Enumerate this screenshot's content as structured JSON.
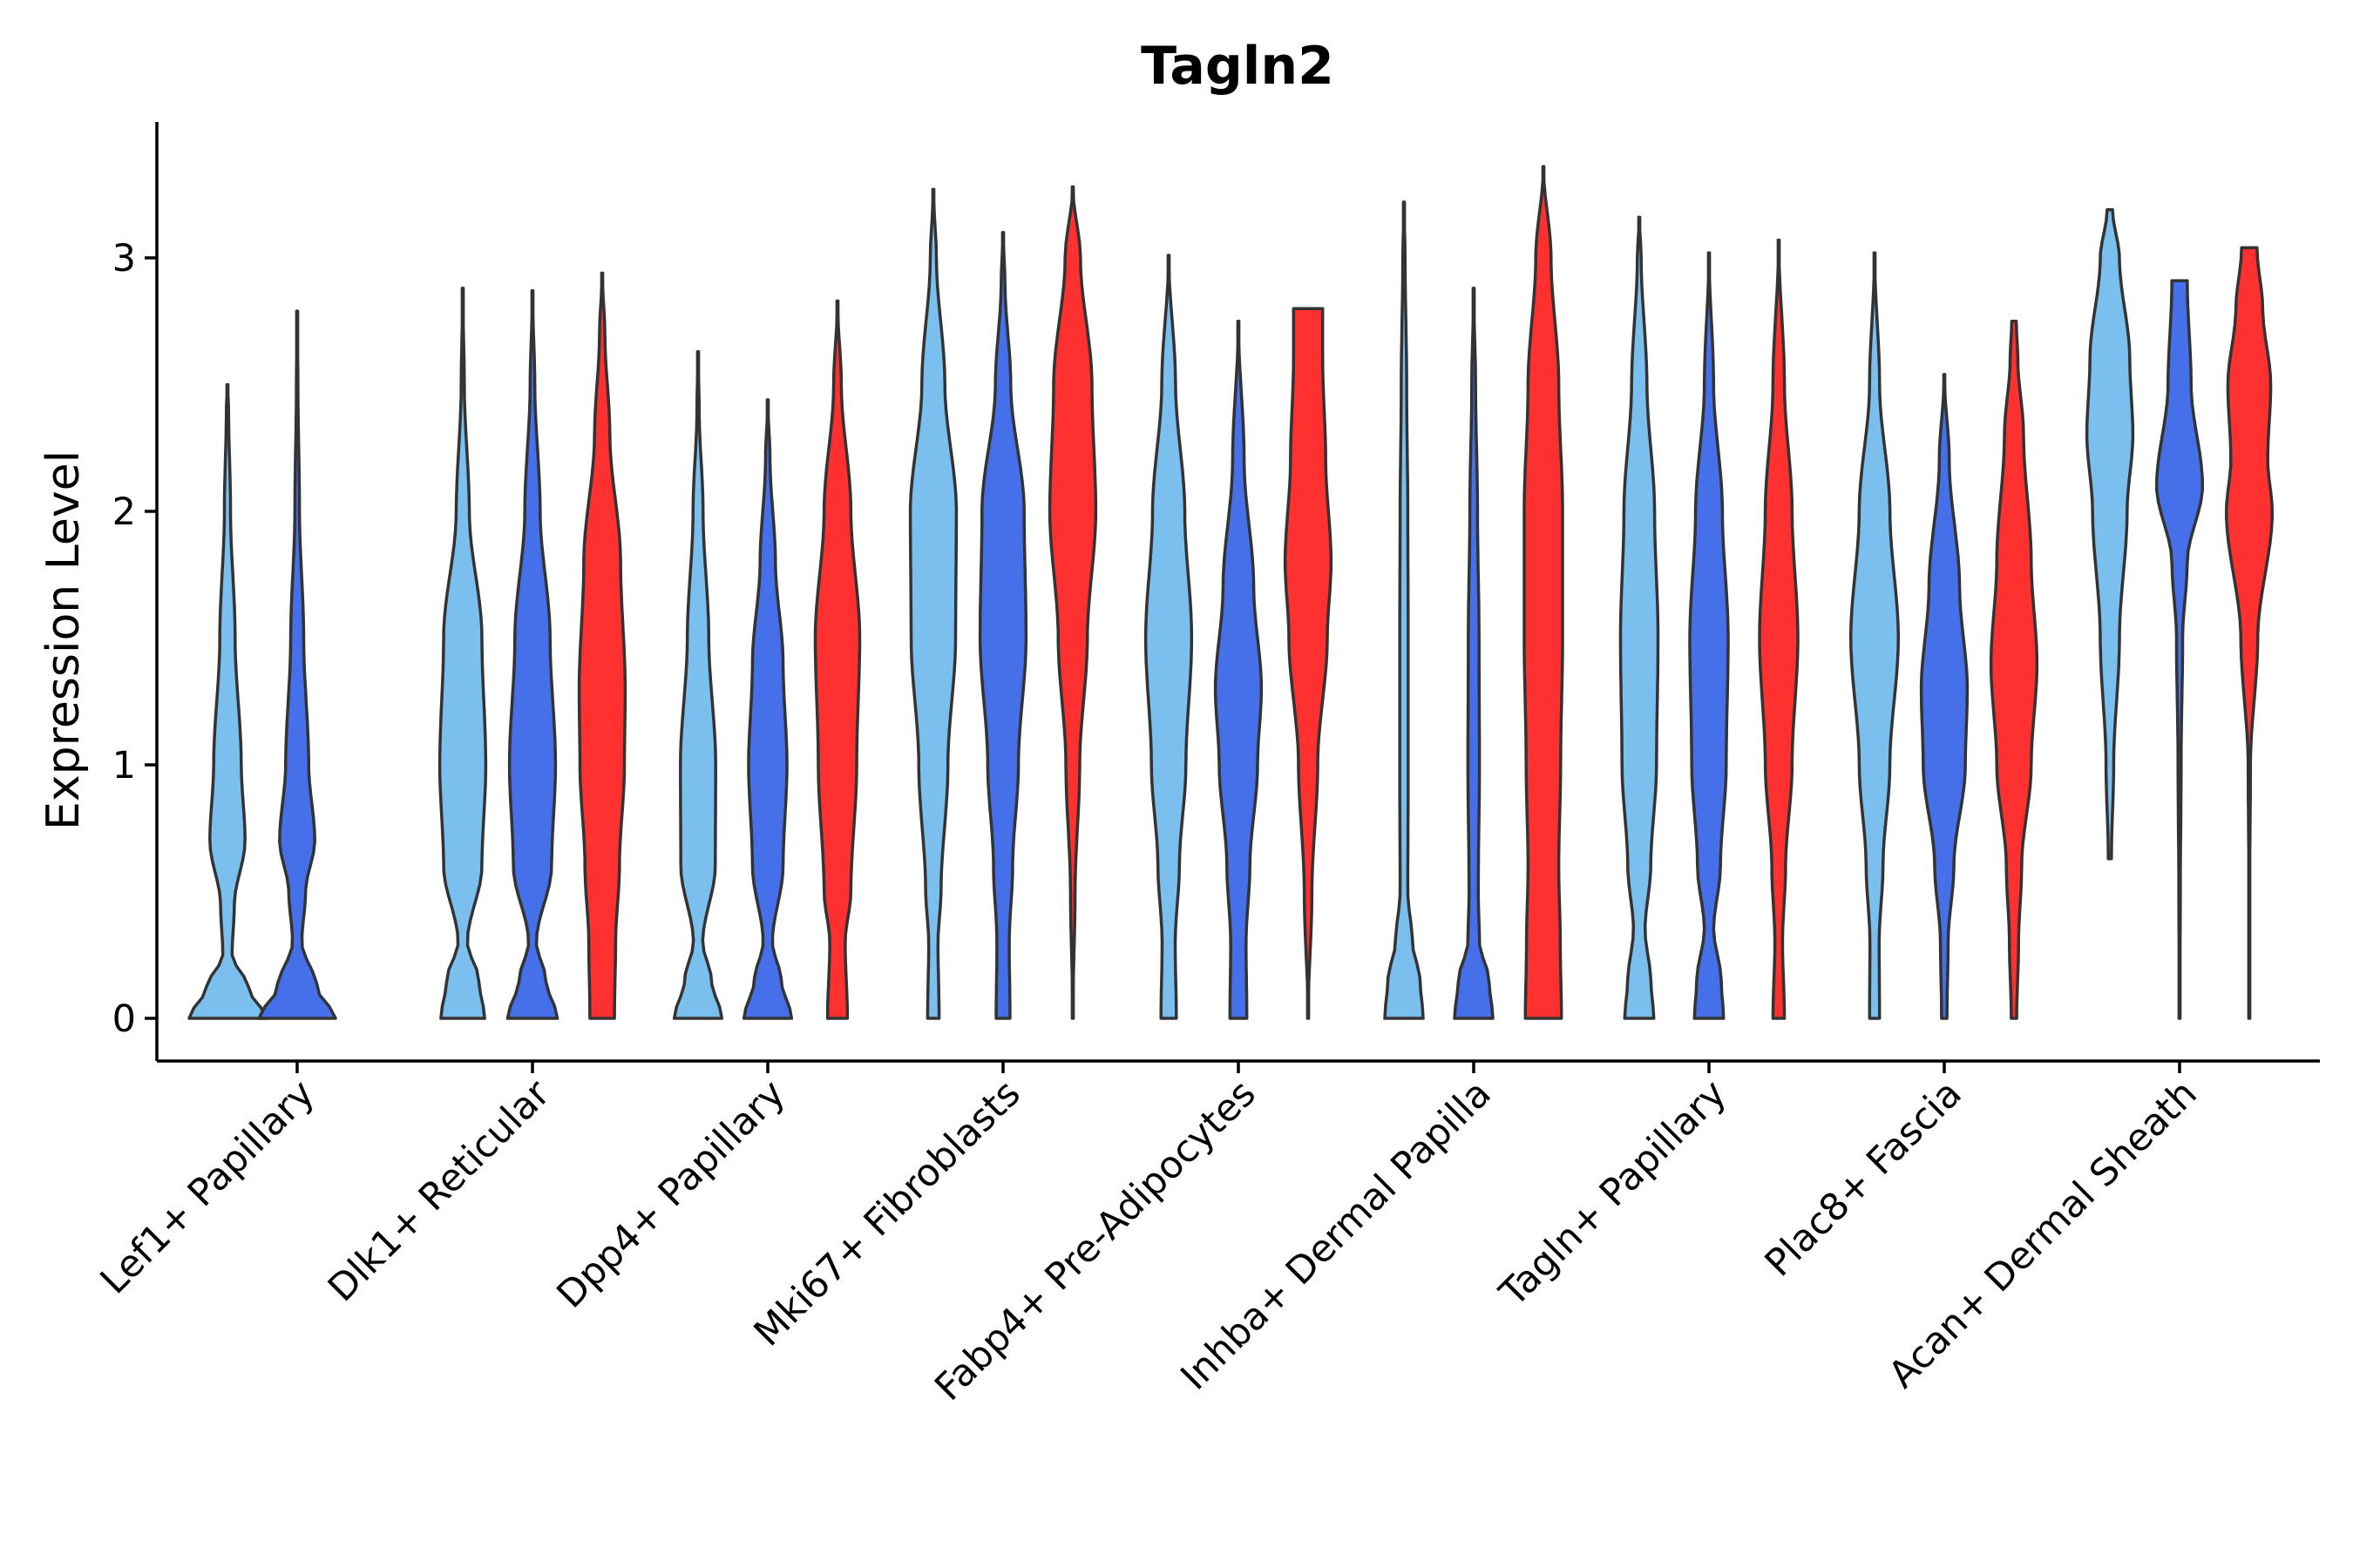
{
  "chart_data": {
    "type": "violin",
    "title": "Tagln2",
    "xlabel": "",
    "ylabel": "Expression Level",
    "ylim": [
      -0.17,
      3.55
    ],
    "yticks": [
      0,
      1,
      2,
      3
    ],
    "categories": [
      "Lef1+ Papillary",
      "Dlk1+ Reticular",
      "Dpp4+ Papillary",
      "Mki67+ Fibroblasts",
      "Fabp4+ Pre-Adipocytes",
      "Inhba+ Dermal Papilla",
      "Tagln+ Papillary",
      "Plac8+ Fascia",
      "Acan+ Dermal Sheath"
    ],
    "groups": [
      {
        "name": "group-1",
        "color": "#7bbfef"
      },
      {
        "name": "group-2",
        "color": "#4570ea"
      },
      {
        "name": "group-3",
        "color": "#ff3030"
      }
    ],
    "violins": [
      {
        "category": 0,
        "group": 0,
        "ymin": 0,
        "ymax": 2.5,
        "profile": [
          [
            0,
            1.0
          ],
          [
            0.12,
            0.55
          ],
          [
            0.25,
            0.12
          ],
          [
            0.45,
            0.18
          ],
          [
            0.7,
            0.46
          ],
          [
            1.0,
            0.36
          ],
          [
            1.5,
            0.2
          ],
          [
            2.0,
            0.08
          ],
          [
            2.4,
            0.03
          ],
          [
            2.5,
            0.0
          ]
        ]
      },
      {
        "category": 0,
        "group": 1,
        "ymin": 0,
        "ymax": 2.79,
        "profile": [
          [
            0,
            1.0
          ],
          [
            0.12,
            0.52
          ],
          [
            0.3,
            0.12
          ],
          [
            0.5,
            0.22
          ],
          [
            0.7,
            0.46
          ],
          [
            1.0,
            0.3
          ],
          [
            1.5,
            0.17
          ],
          [
            2.0,
            0.06
          ],
          [
            2.5,
            0.02
          ],
          [
            2.79,
            0.0
          ]
        ]
      },
      {
        "category": 1,
        "group": 0,
        "ymin": 0,
        "ymax": 2.88,
        "profile": [
          [
            0,
            0.57
          ],
          [
            0.15,
            0.42
          ],
          [
            0.3,
            0.12
          ],
          [
            0.6,
            0.5
          ],
          [
            1.0,
            0.6
          ],
          [
            1.5,
            0.5
          ],
          [
            2.0,
            0.17
          ],
          [
            2.5,
            0.04
          ],
          [
            2.88,
            0.0
          ]
        ]
      },
      {
        "category": 1,
        "group": 1,
        "ymin": 0,
        "ymax": 2.87,
        "profile": [
          [
            0,
            0.65
          ],
          [
            0.15,
            0.35
          ],
          [
            0.3,
            0.1
          ],
          [
            0.6,
            0.5
          ],
          [
            1.0,
            0.6
          ],
          [
            1.5,
            0.46
          ],
          [
            2.0,
            0.2
          ],
          [
            2.5,
            0.06
          ],
          [
            2.87,
            0.0
          ]
        ]
      },
      {
        "category": 1,
        "group": 2,
        "ymin": 0,
        "ymax": 2.94,
        "profile": [
          [
            0,
            0.32
          ],
          [
            0.3,
            0.35
          ],
          [
            0.6,
            0.45
          ],
          [
            1.0,
            0.58
          ],
          [
            1.3,
            0.6
          ],
          [
            1.8,
            0.48
          ],
          [
            2.3,
            0.2
          ],
          [
            2.7,
            0.07
          ],
          [
            2.94,
            0.0
          ]
        ]
      },
      {
        "category": 2,
        "group": 0,
        "ymin": 0,
        "ymax": 2.63,
        "profile": [
          [
            0,
            0.62
          ],
          [
            0.15,
            0.35
          ],
          [
            0.3,
            0.12
          ],
          [
            0.6,
            0.45
          ],
          [
            1.0,
            0.46
          ],
          [
            1.5,
            0.28
          ],
          [
            2.0,
            0.13
          ],
          [
            2.4,
            0.03
          ],
          [
            2.63,
            0.0
          ]
        ]
      },
      {
        "category": 2,
        "group": 1,
        "ymin": 0,
        "ymax": 2.44,
        "profile": [
          [
            0,
            0.62
          ],
          [
            0.15,
            0.35
          ],
          [
            0.3,
            0.12
          ],
          [
            0.6,
            0.4
          ],
          [
            1.0,
            0.5
          ],
          [
            1.4,
            0.4
          ],
          [
            1.8,
            0.2
          ],
          [
            2.2,
            0.06
          ],
          [
            2.44,
            0.0
          ]
        ]
      },
      {
        "category": 2,
        "group": 2,
        "ymin": 0,
        "ymax": 2.83,
        "profile": [
          [
            0,
            0.26
          ],
          [
            0.3,
            0.2
          ],
          [
            0.5,
            0.35
          ],
          [
            1.0,
            0.5
          ],
          [
            1.5,
            0.58
          ],
          [
            2.0,
            0.35
          ],
          [
            2.5,
            0.1
          ],
          [
            2.83,
            0.0
          ]
        ]
      },
      {
        "category": 3,
        "group": 0,
        "ymin": 0,
        "ymax": 3.27,
        "profile": [
          [
            0,
            0.15
          ],
          [
            0.3,
            0.12
          ],
          [
            0.5,
            0.2
          ],
          [
            1.0,
            0.38
          ],
          [
            1.5,
            0.58
          ],
          [
            2.0,
            0.6
          ],
          [
            2.5,
            0.3
          ],
          [
            3.0,
            0.08
          ],
          [
            3.27,
            0.0
          ]
        ]
      },
      {
        "category": 3,
        "group": 1,
        "ymin": 0,
        "ymax": 3.1,
        "profile": [
          [
            0,
            0.18
          ],
          [
            0.3,
            0.16
          ],
          [
            0.6,
            0.25
          ],
          [
            1.0,
            0.4
          ],
          [
            1.5,
            0.6
          ],
          [
            2.0,
            0.55
          ],
          [
            2.5,
            0.2
          ],
          [
            2.9,
            0.05
          ],
          [
            3.1,
            0.0
          ]
        ]
      },
      {
        "category": 3,
        "group": 2,
        "ymin": 0,
        "ymax": 3.28,
        "profile": [
          [
            0,
            0.0
          ],
          [
            0.5,
            0.06
          ],
          [
            1.0,
            0.18
          ],
          [
            1.5,
            0.38
          ],
          [
            2.0,
            0.6
          ],
          [
            2.5,
            0.5
          ],
          [
            3.0,
            0.2
          ],
          [
            3.28,
            0.0
          ]
        ]
      },
      {
        "category": 4,
        "group": 0,
        "ymin": 0,
        "ymax": 3.01,
        "profile": [
          [
            0,
            0.2
          ],
          [
            0.3,
            0.17
          ],
          [
            0.6,
            0.28
          ],
          [
            1.0,
            0.45
          ],
          [
            1.5,
            0.6
          ],
          [
            2.0,
            0.42
          ],
          [
            2.5,
            0.18
          ],
          [
            3.01,
            0.0
          ]
        ]
      },
      {
        "category": 4,
        "group": 1,
        "ymin": 0,
        "ymax": 2.75,
        "profile": [
          [
            0,
            0.22
          ],
          [
            0.3,
            0.2
          ],
          [
            0.6,
            0.3
          ],
          [
            1.0,
            0.5
          ],
          [
            1.3,
            0.6
          ],
          [
            1.7,
            0.4
          ],
          [
            2.2,
            0.15
          ],
          [
            2.75,
            0.0
          ]
        ]
      },
      {
        "category": 4,
        "group": 2,
        "ymin": 0,
        "ymax": 2.8,
        "profile": [
          [
            0,
            0.0
          ],
          [
            0.5,
            0.1
          ],
          [
            1.0,
            0.25
          ],
          [
            1.5,
            0.5
          ],
          [
            1.8,
            0.6
          ],
          [
            2.2,
            0.46
          ],
          [
            2.6,
            0.38
          ],
          [
            2.8,
            0.38
          ]
        ]
      },
      {
        "category": 5,
        "group": 0,
        "ymin": 0,
        "ymax": 3.22,
        "profile": [
          [
            0,
            0.5
          ],
          [
            0.15,
            0.42
          ],
          [
            0.3,
            0.22
          ],
          [
            0.5,
            0.1
          ],
          [
            1.0,
            0.11
          ],
          [
            1.5,
            0.11
          ],
          [
            2.0,
            0.1
          ],
          [
            2.5,
            0.07
          ],
          [
            3.0,
            0.03
          ],
          [
            3.22,
            0.0
          ]
        ]
      },
      {
        "category": 5,
        "group": 1,
        "ymin": 0,
        "ymax": 2.88,
        "profile": [
          [
            0,
            0.5
          ],
          [
            0.15,
            0.4
          ],
          [
            0.3,
            0.15
          ],
          [
            0.5,
            0.12
          ],
          [
            1.0,
            0.15
          ],
          [
            1.5,
            0.14
          ],
          [
            2.0,
            0.1
          ],
          [
            2.5,
            0.05
          ],
          [
            2.88,
            0.0
          ]
        ]
      },
      {
        "category": 5,
        "group": 2,
        "ymin": 0,
        "ymax": 3.36,
        "profile": [
          [
            0,
            0.47
          ],
          [
            0.3,
            0.44
          ],
          [
            0.6,
            0.4
          ],
          [
            1.0,
            0.45
          ],
          [
            1.5,
            0.5
          ],
          [
            2.0,
            0.5
          ],
          [
            2.5,
            0.4
          ],
          [
            3.0,
            0.2
          ],
          [
            3.36,
            0.0
          ]
        ]
      },
      {
        "category": 6,
        "group": 0,
        "ymin": 0,
        "ymax": 3.16,
        "profile": [
          [
            0,
            0.38
          ],
          [
            0.15,
            0.3
          ],
          [
            0.35,
            0.15
          ],
          [
            0.6,
            0.3
          ],
          [
            1.0,
            0.45
          ],
          [
            1.5,
            0.49
          ],
          [
            2.0,
            0.4
          ],
          [
            2.5,
            0.2
          ],
          [
            3.0,
            0.05
          ],
          [
            3.16,
            0.0
          ]
        ]
      },
      {
        "category": 6,
        "group": 1,
        "ymin": 0,
        "ymax": 3.02,
        "profile": [
          [
            0,
            0.38
          ],
          [
            0.15,
            0.32
          ],
          [
            0.35,
            0.12
          ],
          [
            0.6,
            0.3
          ],
          [
            1.0,
            0.45
          ],
          [
            1.5,
            0.5
          ],
          [
            2.0,
            0.35
          ],
          [
            2.5,
            0.12
          ],
          [
            3.02,
            0.0
          ]
        ]
      },
      {
        "category": 6,
        "group": 2,
        "ymin": 0,
        "ymax": 3.07,
        "profile": [
          [
            0,
            0.15
          ],
          [
            0.3,
            0.1
          ],
          [
            0.6,
            0.18
          ],
          [
            1.0,
            0.35
          ],
          [
            1.5,
            0.5
          ],
          [
            2.0,
            0.35
          ],
          [
            2.5,
            0.15
          ],
          [
            3.07,
            0.0
          ]
        ]
      },
      {
        "category": 7,
        "group": 0,
        "ymin": 0,
        "ymax": 3.02,
        "profile": [
          [
            0,
            0.13
          ],
          [
            0.3,
            0.12
          ],
          [
            0.6,
            0.22
          ],
          [
            1.0,
            0.4
          ],
          [
            1.5,
            0.62
          ],
          [
            2.0,
            0.4
          ],
          [
            2.5,
            0.13
          ],
          [
            3.02,
            0.0
          ]
        ]
      },
      {
        "category": 7,
        "group": 1,
        "ymin": 0,
        "ymax": 2.54,
        "profile": [
          [
            0,
            0.07
          ],
          [
            0.3,
            0.1
          ],
          [
            0.6,
            0.25
          ],
          [
            1.0,
            0.55
          ],
          [
            1.3,
            0.6
          ],
          [
            1.7,
            0.4
          ],
          [
            2.2,
            0.13
          ],
          [
            2.54,
            0.0
          ]
        ]
      },
      {
        "category": 7,
        "group": 2,
        "ymin": 0,
        "ymax": 2.75,
        "profile": [
          [
            0,
            0.07
          ],
          [
            0.3,
            0.12
          ],
          [
            0.6,
            0.2
          ],
          [
            1.0,
            0.45
          ],
          [
            1.4,
            0.6
          ],
          [
            1.8,
            0.45
          ],
          [
            2.3,
            0.25
          ],
          [
            2.6,
            0.1
          ],
          [
            2.75,
            0.06
          ]
        ]
      },
      {
        "category": 8,
        "group": 0,
        "ymin": 0.63,
        "ymax": 3.19,
        "profile": [
          [
            0.63,
            0.04
          ],
          [
            1.0,
            0.1
          ],
          [
            1.5,
            0.25
          ],
          [
            2.0,
            0.45
          ],
          [
            2.3,
            0.6
          ],
          [
            2.6,
            0.52
          ],
          [
            3.0,
            0.25
          ],
          [
            3.19,
            0.07
          ]
        ]
      },
      {
        "category": 8,
        "group": 1,
        "ymin": 0,
        "ymax": 2.91,
        "profile": [
          [
            0,
            0.0
          ],
          [
            0.5,
            0.02
          ],
          [
            1.0,
            0.04
          ],
          [
            1.5,
            0.08
          ],
          [
            1.8,
            0.2
          ],
          [
            2.1,
            0.6
          ],
          [
            2.5,
            0.3
          ],
          [
            2.91,
            0.2
          ]
        ]
      },
      {
        "category": 8,
        "group": 2,
        "ymin": 0,
        "ymax": 3.04,
        "profile": [
          [
            0,
            0.0
          ],
          [
            0.5,
            0.01
          ],
          [
            1.0,
            0.03
          ],
          [
            1.5,
            0.22
          ],
          [
            2.0,
            0.6
          ],
          [
            2.2,
            0.48
          ],
          [
            2.5,
            0.56
          ],
          [
            2.8,
            0.35
          ],
          [
            3.04,
            0.2
          ]
        ]
      }
    ]
  }
}
